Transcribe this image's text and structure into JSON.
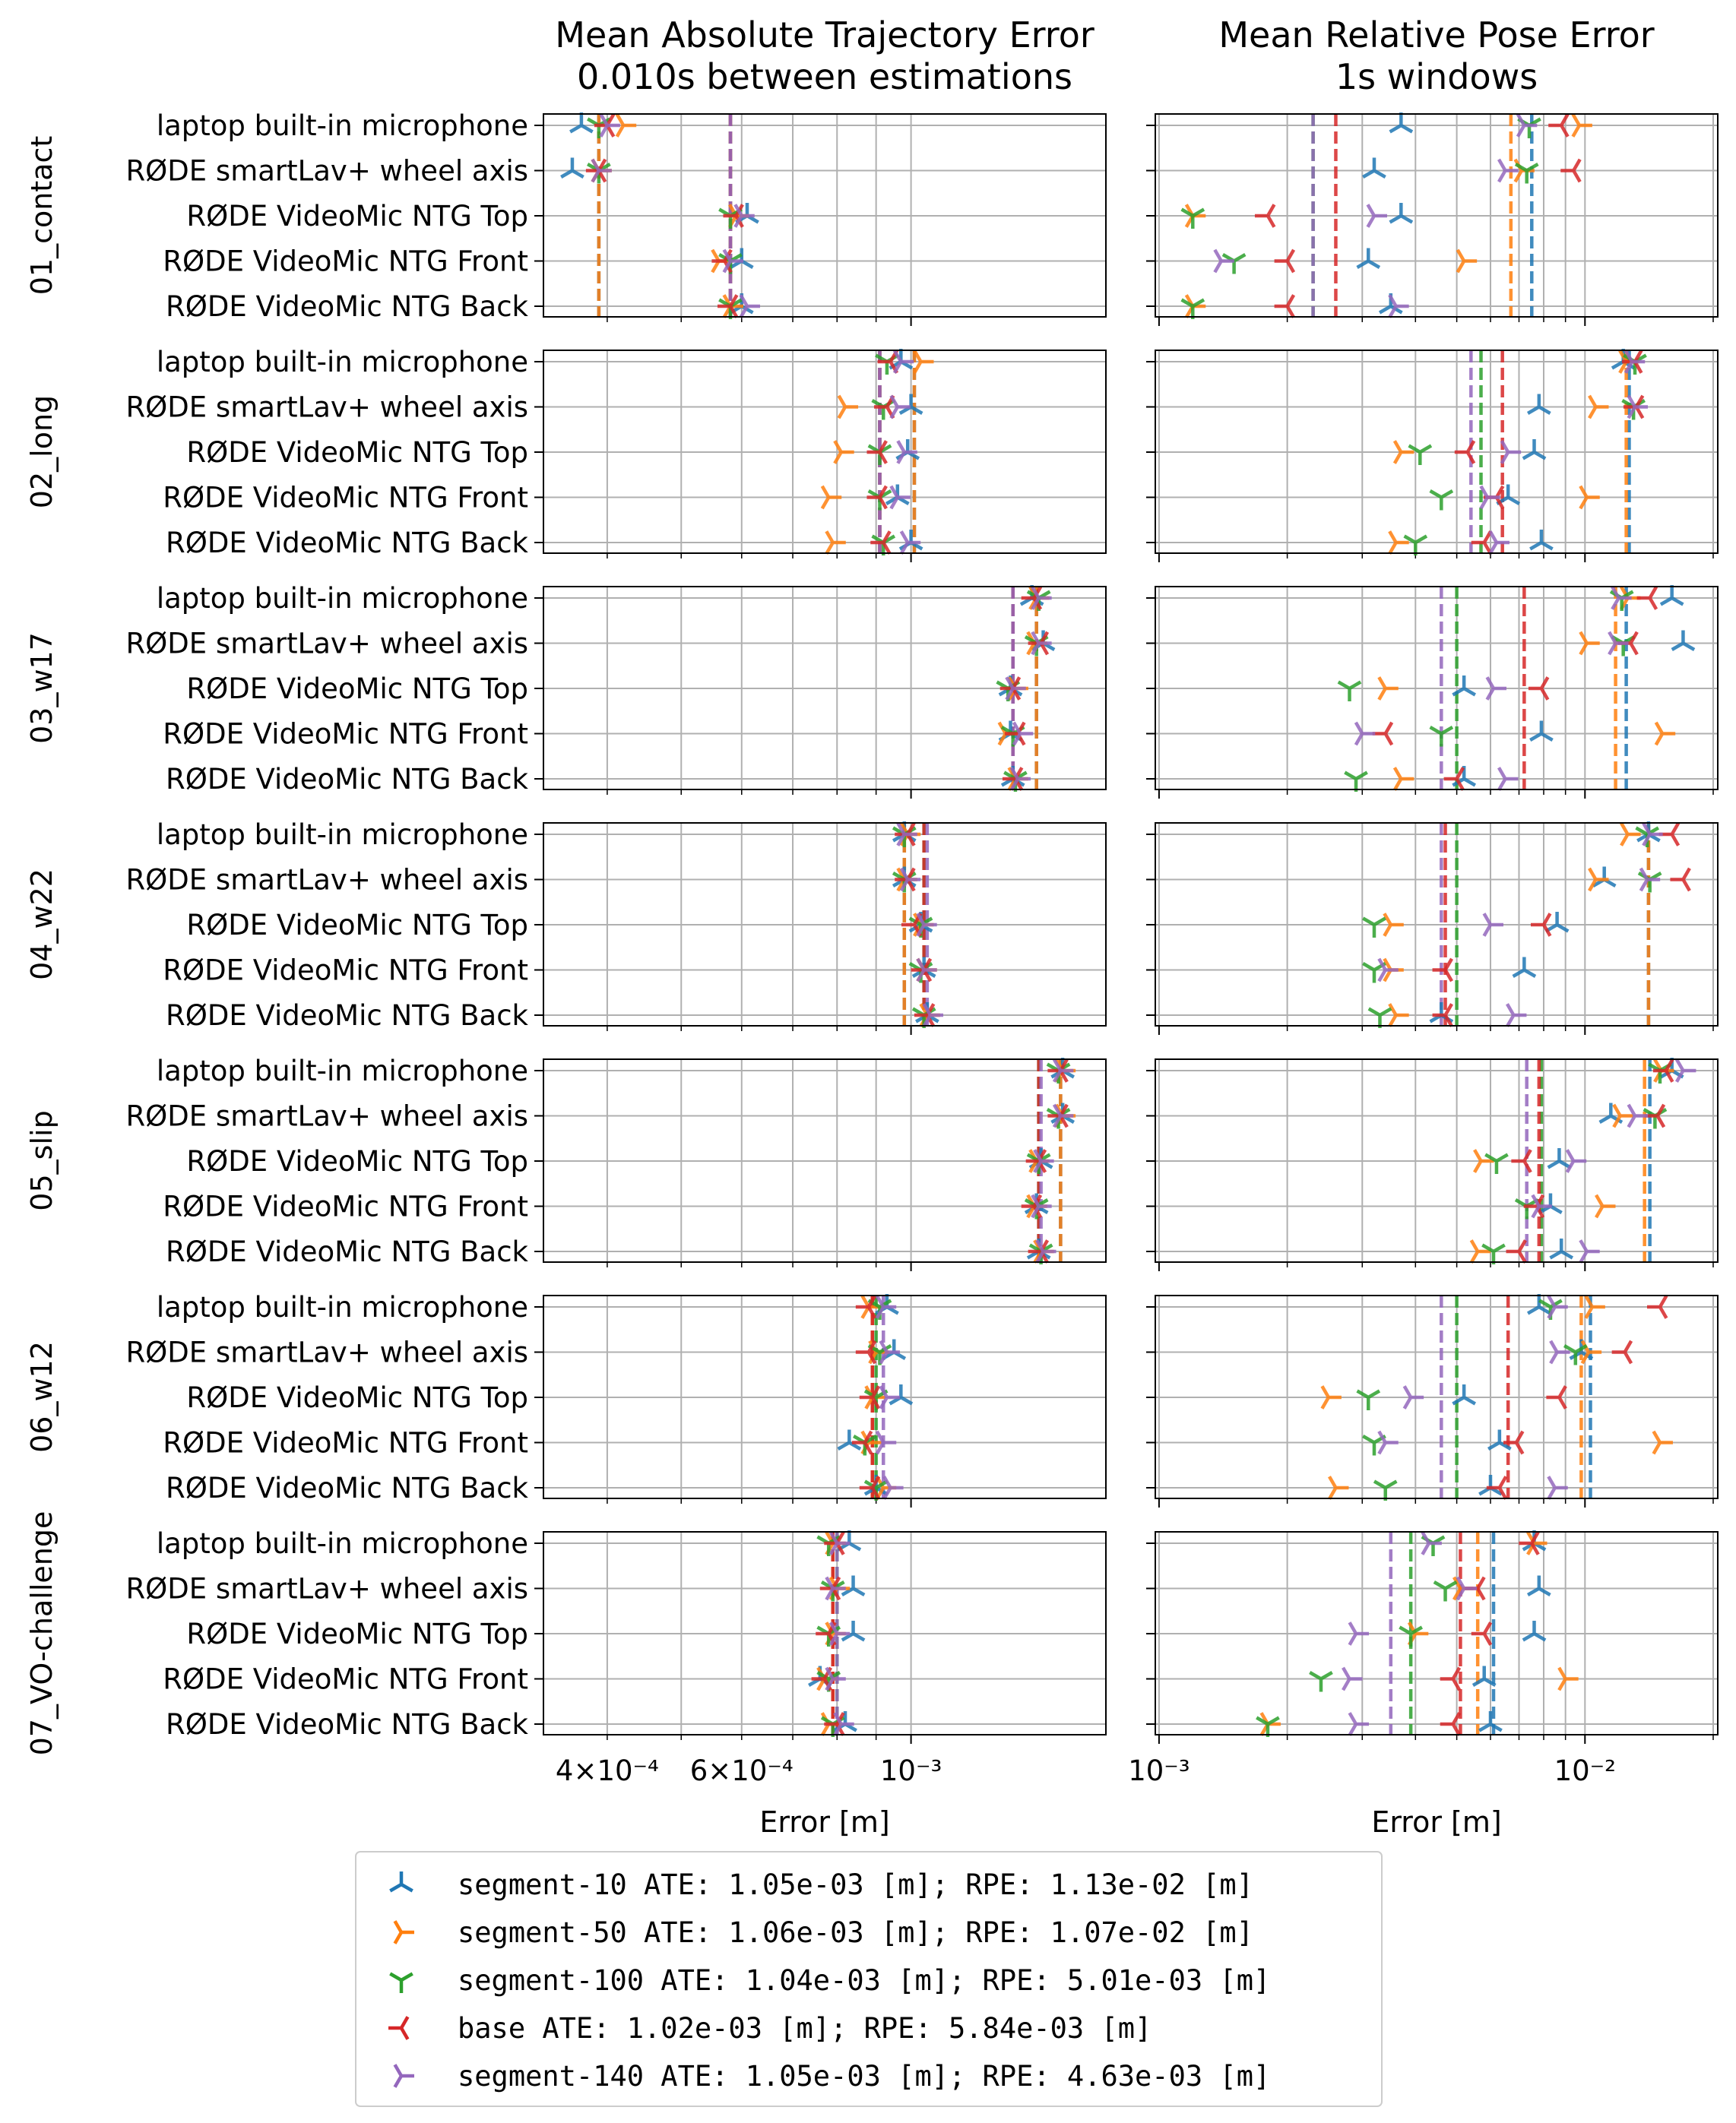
{
  "chart_data": {
    "type": "scatter",
    "titles": [
      "Mean Absolute Trajectory Error\n0.010s between estimations",
      "Mean Relative Pose Error\n1s windows"
    ],
    "xlabel": "Error [m]",
    "xscale": "log",
    "grid": true,
    "panels": [
      {
        "xlim": [
          0.00033,
          0.0018
        ],
        "ticks": [
          {
            "v": 0.0004,
            "l": "4×10⁻⁴"
          },
          {
            "v": 0.0006,
            "l": "6×10⁻⁴"
          },
          {
            "v": 0.001,
            "l": "10⁻³"
          }
        ]
      },
      {
        "xlim": [
          0.00098,
          0.0205
        ],
        "ticks": [
          {
            "v": 0.001,
            "l": "10⁻³"
          },
          {
            "v": 0.01,
            "l": "10⁻²"
          }
        ]
      }
    ],
    "rows": [
      "laptop built-in microphone",
      "RØDE smartLav+ wheel axis",
      "RØDE VideoMic NTG Top",
      "RØDE VideoMic NTG Front",
      "RØDE VideoMic NTG Back"
    ],
    "series": [
      {
        "name": "segment-10",
        "color": "#1f77b4",
        "marker": "tri_up",
        "legend": "ATE: 1.05e-03 [m]; RPE: 1.13e-02 [m]"
      },
      {
        "name": "segment-50",
        "color": "#ff7f0e",
        "marker": "tri_right",
        "legend": "ATE: 1.06e-03 [m]; RPE: 1.07e-02 [m]"
      },
      {
        "name": "segment-100",
        "color": "#2ca02c",
        "marker": "tri_down",
        "legend": "ATE: 1.04e-03 [m]; RPE: 5.01e-03 [m]"
      },
      {
        "name": "base",
        "color": "#d62728",
        "marker": "tri_left",
        "legend": "ATE: 1.02e-03 [m]; RPE: 5.84e-03 [m]"
      },
      {
        "name": "segment-140",
        "color": "#9467bd",
        "marker": "tri_right",
        "legend": "ATE: 1.05e-03 [m]; RPE: 4.63e-03 [m]"
      }
    ],
    "groups": [
      {
        "name": "01_contact",
        "ate_mean": [
          0.00039,
          0.00039,
          0.00058,
          0.00058,
          0.00058
        ],
        "rpe_mean": [
          0.0075,
          0.0067,
          0.0023,
          0.0026,
          0.0023
        ],
        "ate": [
          [
            0.00037,
            0.00042,
            0.00039,
            0.0004,
            0.0004
          ],
          [
            0.00036,
            0.00039,
            0.00039,
            0.00039,
            0.00039
          ],
          [
            0.00061,
            0.00059,
            0.00058,
            0.00059,
            0.0006
          ],
          [
            0.0006,
            0.00056,
            0.00058,
            0.00057,
            0.00058
          ],
          [
            0.0006,
            0.00058,
            0.00058,
            0.00058,
            0.00061
          ]
        ],
        "rpe": [
          [
            0.0037,
            0.0097,
            0.0074,
            0.0088,
            0.0072
          ],
          [
            0.0032,
            0.0071,
            0.0073,
            0.0094,
            0.0065
          ],
          [
            0.0037,
            0.0012,
            0.0012,
            0.0018,
            0.0032
          ],
          [
            0.0031,
            0.0052,
            0.0015,
            0.002,
            0.0014
          ],
          [
            0.0035,
            0.0012,
            0.0012,
            0.002,
            0.0036
          ]
        ]
      },
      {
        "name": "02_long",
        "ate_mean": [
          0.00101,
          0.00101,
          0.00091,
          0.00091,
          0.00091
        ],
        "rpe_mean": [
          0.0127,
          0.0125,
          0.0057,
          0.0064,
          0.0054
        ],
        "ate": [
          [
            0.00097,
            0.00103,
            0.00093,
            0.00094,
            0.00097
          ],
          [
            0.001,
            0.00082,
            0.00092,
            0.00093,
            0.00096
          ],
          [
            0.00099,
            0.00081,
            0.00091,
            0.00091,
            0.00098
          ],
          [
            0.00096,
            0.00078,
            0.00091,
            0.00091,
            0.00096
          ],
          [
            0.001,
            0.00079,
            0.00092,
            0.00092,
            0.00099
          ]
        ],
        "rpe": [
          [
            0.0123,
            0.0125,
            0.0131,
            0.0131,
            0.0129
          ],
          [
            0.0078,
            0.0106,
            0.013,
            0.0132,
            0.0131
          ],
          [
            0.0076,
            0.0037,
            0.0041,
            0.0053,
            0.0066
          ],
          [
            0.0066,
            0.0101,
            0.0046,
            0.0062,
            0.0059
          ],
          [
            0.0079,
            0.0036,
            0.004,
            0.0058,
            0.0062
          ]
        ]
      },
      {
        "name": "03_w17",
        "ate_mean": [
          0.00146,
          0.00146,
          0.00136,
          0.00136,
          0.00136
        ],
        "rpe_mean": [
          0.0125,
          0.0118,
          0.005,
          0.0072,
          0.0046
        ],
        "ate": [
          [
            0.00144,
            0.00146,
            0.00147,
            0.00145,
            0.00147
          ],
          [
            0.00149,
            0.00145,
            0.00146,
            0.00148,
            0.00147
          ],
          [
            0.00135,
            0.00137,
            0.00134,
            0.00136,
            0.00136
          ],
          [
            0.00135,
            0.00133,
            0.00136,
            0.00138,
            0.00139
          ],
          [
            0.00136,
            0.00137,
            0.00137,
            0.00137,
            0.00138
          ]
        ],
        "rpe": [
          [
            0.016,
            0.0126,
            0.0122,
            0.0142,
            0.012
          ],
          [
            0.017,
            0.0101,
            0.0123,
            0.0128,
            0.0118
          ],
          [
            0.0052,
            0.0034,
            0.0028,
            0.0079,
            0.0061
          ],
          [
            0.0079,
            0.0152,
            0.0046,
            0.0034,
            0.003
          ],
          [
            0.0052,
            0.0037,
            0.0029,
            0.005,
            0.0065
          ]
        ]
      },
      {
        "name": "04_w22",
        "ate_mean": [
          0.00098,
          0.00098,
          0.00104,
          0.00104,
          0.00105
        ],
        "rpe_mean": [
          0.0141,
          0.0141,
          0.005,
          0.0047,
          0.0046
        ],
        "ate": [
          [
            0.00098,
            0.00099,
            0.00098,
            0.00099,
            0.00098
          ],
          [
            0.00098,
            0.00098,
            0.00098,
            0.00099,
            0.00099
          ],
          [
            0.00103,
            0.00103,
            0.00103,
            0.00101,
            0.00104
          ],
          [
            0.00104,
            0.00104,
            0.00103,
            0.00104,
            0.00104
          ],
          [
            0.00105,
            0.00105,
            0.00104,
            0.00105,
            0.00106
          ]
        ],
        "rpe": [
          [
            0.0141,
            0.0126,
            0.014,
            0.016,
            0.0142
          ],
          [
            0.0111,
            0.0106,
            0.0142,
            0.017,
            0.014
          ],
          [
            0.0086,
            0.0035,
            0.0032,
            0.008,
            0.006
          ],
          [
            0.0072,
            0.0035,
            0.0032,
            0.0047,
            0.0034
          ],
          [
            0.0046,
            0.0036,
            0.0033,
            0.0047,
            0.0068
          ]
        ]
      },
      {
        "name": "05_slip",
        "ate_mean": [
          0.00157,
          0.00157,
          0.00147,
          0.00147,
          0.00148
        ],
        "rpe_mean": [
          0.0142,
          0.0138,
          0.0079,
          0.0078,
          0.0073
        ],
        "ate": [
          [
            0.00158,
            0.00158,
            0.00156,
            0.00157,
            0.00157
          ],
          [
            0.00158,
            0.00158,
            0.00156,
            0.00157,
            0.00157
          ],
          [
            0.00148,
            0.00146,
            0.00147,
            0.00147,
            0.00148
          ],
          [
            0.00146,
            0.00145,
            0.00146,
            0.00145,
            0.00147
          ],
          [
            0.00147,
            0.00148,
            0.00148,
            0.00148,
            0.00149
          ]
        ],
        "rpe": [
          [
            0.016,
            0.0151,
            0.015,
            0.0155,
            0.017
          ],
          [
            0.0115,
            0.0121,
            0.0146,
            0.0148,
            0.0131
          ],
          [
            0.0087,
            0.0057,
            0.0062,
            0.0072,
            0.0094
          ],
          [
            0.0083,
            0.011,
            0.0073,
            0.0077,
            0.0078
          ],
          [
            0.0088,
            0.0056,
            0.0061,
            0.007,
            0.0101
          ]
        ]
      },
      {
        "name": "06_w12",
        "ate_mean": [
          0.00089,
          0.00089,
          0.0009,
          0.00089,
          0.00092
        ],
        "rpe_mean": [
          0.0103,
          0.0098,
          0.005,
          0.0066,
          0.0046
        ],
        "ate": [
          [
            0.00093,
            0.00088,
            0.00091,
            0.00088,
            0.00092
          ],
          [
            0.00095,
            0.0009,
            0.00091,
            0.00088,
            0.00093
          ],
          [
            0.00097,
            0.00089,
            0.0009,
            0.00089,
            0.00093
          ],
          [
            0.00083,
            0.00088,
            0.00087,
            0.00087,
            0.00092
          ],
          [
            0.0009,
            0.00092,
            0.0009,
            0.00089,
            0.00094
          ]
        ],
        "rpe": [
          [
            0.0078,
            0.0104,
            0.0083,
            0.015,
            0.0085
          ],
          [
            0.0098,
            0.0102,
            0.0095,
            0.0124,
            0.0086
          ],
          [
            0.0052,
            0.0025,
            0.0031,
            0.0087,
            0.0039
          ],
          [
            0.0063,
            0.015,
            0.0032,
            0.0069,
            0.0034
          ],
          [
            0.006,
            0.0026,
            0.0034,
            0.0063,
            0.0085
          ]
        ]
      },
      {
        "name": "07_VO-challenge",
        "ate_mean": [
          0.00079,
          0.00079,
          0.0008,
          0.00079,
          0.0008
        ],
        "rpe_mean": [
          0.0061,
          0.0056,
          0.0039,
          0.0051,
          0.0035
        ],
        "ate": [
          [
            0.00083,
            0.00079,
            0.00078,
            0.0008,
            0.0008
          ],
          [
            0.00084,
            0.0008,
            0.00079,
            0.00079,
            0.00079
          ],
          [
            0.00084,
            0.00079,
            0.00078,
            0.00078,
            0.0008
          ],
          [
            0.00076,
            0.00077,
            0.00078,
            0.00077,
            0.00079
          ],
          [
            0.00082,
            0.00078,
            0.00079,
            0.0008,
            0.00081
          ]
        ],
        "rpe": [
          [
            0.0076,
            0.0076,
            0.0044,
            0.0075,
            0.0043
          ],
          [
            0.0078,
            0.0051,
            0.0047,
            0.0056,
            0.0052
          ],
          [
            0.0076,
            0.004,
            0.0039,
            0.0058,
            0.0029
          ],
          [
            0.0058,
            0.009,
            0.0024,
            0.0049,
            0.0028
          ],
          [
            0.006,
            0.0018,
            0.0018,
            0.0049,
            0.0029
          ]
        ]
      }
    ]
  }
}
